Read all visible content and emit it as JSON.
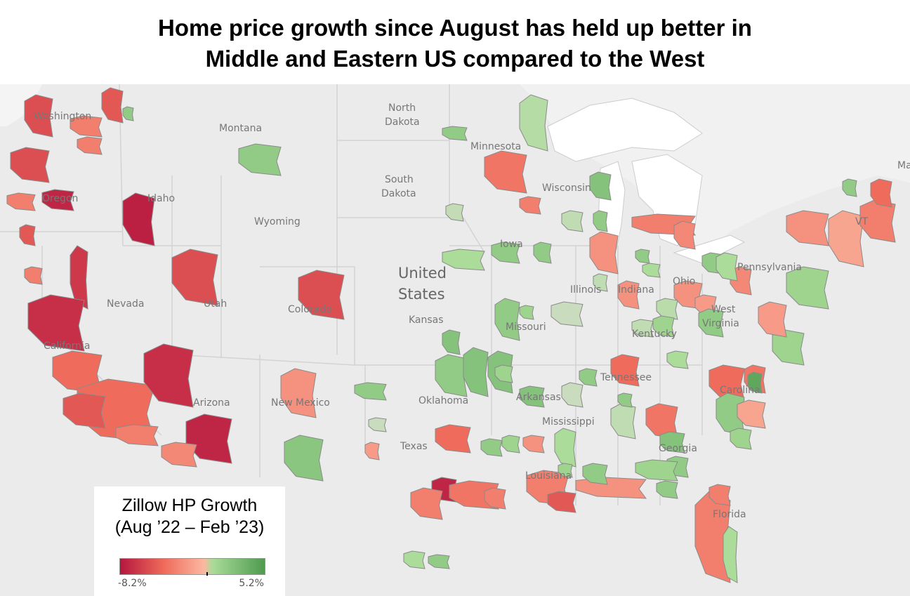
{
  "title_lines": [
    "Home price growth since August has held up better in",
    "Middle and Eastern US compared to the West"
  ],
  "legend": {
    "title_line1": "Zillow HP Growth",
    "title_line2": "(Aug ’22 – Feb ’23)",
    "min_label": "-8.2%",
    "max_label": "5.2%",
    "min_value": -8.2,
    "max_value": 5.2,
    "midpoint_value": 0,
    "colors": [
      "#b5173f",
      "#ef6a5a",
      "#fbb8a2",
      "#a9dc97",
      "#4f9a50"
    ]
  },
  "map_labels": {
    "washington": "Washington",
    "montana": "Montana",
    "north_dakota_1": "North",
    "north_dakota_2": "Dakota",
    "minnesota": "Minnesota",
    "south_dakota_1": "South",
    "south_dakota_2": "Dakota",
    "wisconsin": "Wisconsin",
    "oregon": "Oregon",
    "idaho": "Idaho",
    "wyoming": "Wyoming",
    "iowa": "Iowa",
    "united": "United",
    "states": "States",
    "nevada": "Nevada",
    "utah": "Utah",
    "colorado": "Colorado",
    "kansas": "Kansas",
    "missouri": "Missouri",
    "illinois": "Illinois",
    "indiana": "Indiana",
    "ohio": "Ohio",
    "pennsylvania": "Pennsylvania",
    "west_1": "West",
    "west_2": "Virginia",
    "kentucky": "Kentucky",
    "tennessee": "Tennessee",
    "north_carolina": "Carolina",
    "oklahoma": "Oklahoma",
    "arkansas": "Arkansas",
    "california": "California",
    "arizona": "Arizona",
    "new_mexico": "New Mexico",
    "mississippi": "Mississippi",
    "georgia": "Georgia",
    "texas": "Texas",
    "louisiana": "Louisiana",
    "florida": "Florida",
    "maine": "Ma",
    "vermont": "VT"
  },
  "metro_growth": [
    -5.5,
    -5,
    -3,
    -3,
    -5.5,
    -7.5,
    -3,
    -7.8,
    -5,
    -5.5,
    -6.5,
    -7,
    -4,
    -4,
    -5,
    -3,
    -7,
    -7.5,
    -2.5,
    -5.5,
    -2,
    2.5,
    2.5,
    -3,
    2.5,
    -3.5,
    1.2,
    0.7,
    3,
    -3,
    0.8,
    2.5,
    1.5,
    2.5,
    2.5,
    -2,
    -3,
    -2.5,
    2.5,
    1.5,
    -2,
    0.8,
    2.5,
    0.5,
    2,
    3,
    2.5,
    3,
    3,
    -2,
    2.5,
    -2.5,
    1.5,
    -1.5,
    1,
    0.8,
    2,
    2.5,
    -4,
    1.5,
    2.5,
    3,
    2,
    0.5,
    1.5,
    0.8,
    -3.5,
    3,
    2.5,
    -4,
    -3.5,
    4.5,
    2.5,
    -1,
    2,
    2.5,
    -3,
    1.5,
    -3,
    2,
    -1.5,
    2,
    -2,
    -1,
    -3,
    -4,
    2.5,
    -7.5,
    -3.5,
    -3,
    -4,
    2.8,
    2.5,
    0.5,
    -1.5,
    1.5,
    2.5,
    2.5,
    2,
    -3,
    -3,
    -5,
    -2,
    2,
    2.5,
    -2,
    2,
    2.5
  ]
}
